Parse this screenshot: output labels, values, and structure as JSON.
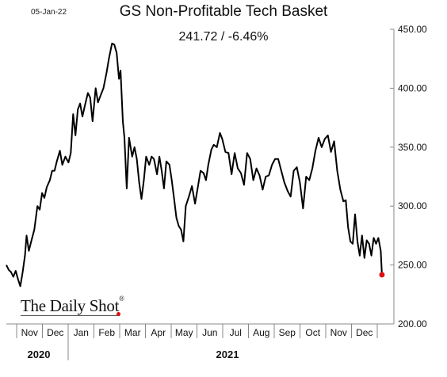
{
  "header": {
    "date": "05-Jan-22",
    "title": "GS Non-Profitable Tech Basket",
    "subtitle": "241.72  /  -6.46%"
  },
  "brand": {
    "name": "The Daily Shot",
    "mark": "®"
  },
  "chart_data": {
    "type": "line",
    "title": "GS Non-Profitable Tech Basket",
    "annotation": "241.72  /  -6.46%",
    "ylim": [
      200,
      450
    ],
    "y_ticks": [
      200,
      250,
      300,
      350,
      400,
      450
    ],
    "y_tick_labels": [
      "200.00",
      "250.00",
      "300.00",
      "350.00",
      "400.00",
      "450.00"
    ],
    "y_axis_side": "right",
    "grid": false,
    "x_month_labels": [
      "Nov",
      "Dec",
      "Jan",
      "Feb",
      "Mar",
      "Apr",
      "May",
      "Jun",
      "Jul",
      "Aug",
      "Sep",
      "Oct",
      "Nov",
      "Dec"
    ],
    "x_year_labels": [
      "2020",
      "2021"
    ],
    "last_point_color": "#e01010",
    "line_color": "#000000",
    "series": [
      {
        "values": [
          [
            0.0,
            250
          ],
          [
            0.15,
            246
          ],
          [
            0.3,
            244
          ],
          [
            0.45,
            240
          ],
          [
            0.6,
            245
          ],
          [
            0.75,
            238
          ],
          [
            0.9,
            232
          ],
          [
            1.05,
            244
          ],
          [
            1.2,
            258
          ],
          [
            1.3,
            275
          ],
          [
            1.45,
            262
          ],
          [
            1.6,
            270
          ],
          [
            1.8,
            280
          ],
          [
            2.0,
            300
          ],
          [
            2.15,
            297
          ],
          [
            2.3,
            311
          ],
          [
            2.45,
            307
          ],
          [
            2.6,
            316
          ],
          [
            2.8,
            322
          ],
          [
            2.95,
            330
          ],
          [
            3.1,
            330
          ],
          [
            3.25,
            338
          ],
          [
            3.45,
            347
          ],
          [
            3.6,
            335
          ],
          [
            3.8,
            342
          ],
          [
            4.0,
            337
          ],
          [
            4.15,
            345
          ],
          [
            4.3,
            378
          ],
          [
            4.45,
            360
          ],
          [
            4.6,
            382
          ],
          [
            4.75,
            387
          ],
          [
            4.9,
            376
          ],
          [
            5.05,
            385
          ],
          [
            5.25,
            396
          ],
          [
            5.4,
            392
          ],
          [
            5.55,
            372
          ],
          [
            5.75,
            400
          ],
          [
            5.9,
            388
          ],
          [
            6.1,
            395
          ],
          [
            6.25,
            400
          ],
          [
            6.45,
            413
          ],
          [
            6.6,
            425
          ],
          [
            6.8,
            438
          ],
          [
            6.95,
            437
          ],
          [
            7.1,
            430
          ],
          [
            7.25,
            408
          ],
          [
            7.35,
            415
          ],
          [
            7.5,
            372
          ],
          [
            7.6,
            358
          ],
          [
            7.75,
            315
          ],
          [
            7.9,
            358
          ],
          [
            8.1,
            342
          ],
          [
            8.25,
            350
          ],
          [
            8.4,
            340
          ],
          [
            8.55,
            320
          ],
          [
            8.7,
            306
          ],
          [
            8.85,
            322
          ],
          [
            9.0,
            342
          ],
          [
            9.2,
            335
          ],
          [
            9.35,
            342
          ],
          [
            9.5,
            340
          ],
          [
            9.7,
            327
          ],
          [
            9.85,
            342
          ],
          [
            10.0,
            330
          ],
          [
            10.15,
            315
          ],
          [
            10.3,
            338
          ],
          [
            10.5,
            335
          ],
          [
            10.65,
            322
          ],
          [
            10.8,
            306
          ],
          [
            10.95,
            290
          ],
          [
            11.1,
            283
          ],
          [
            11.25,
            280
          ],
          [
            11.4,
            270
          ],
          [
            11.55,
            300
          ],
          [
            11.75,
            308
          ],
          [
            11.95,
            317
          ],
          [
            12.15,
            302
          ],
          [
            12.35,
            318
          ],
          [
            12.5,
            330
          ],
          [
            12.7,
            328
          ],
          [
            12.85,
            322
          ],
          [
            13.0,
            335
          ],
          [
            13.2,
            348
          ],
          [
            13.35,
            352
          ],
          [
            13.55,
            350
          ],
          [
            13.75,
            362
          ],
          [
            13.9,
            357
          ],
          [
            14.1,
            346
          ],
          [
            14.3,
            345
          ],
          [
            14.5,
            327
          ],
          [
            14.7,
            345
          ],
          [
            14.9,
            332
          ],
          [
            15.1,
            328
          ],
          [
            15.3,
            318
          ],
          [
            15.5,
            345
          ],
          [
            15.7,
            340
          ],
          [
            15.9,
            322
          ],
          [
            16.1,
            332
          ],
          [
            16.3,
            326
          ],
          [
            16.5,
            314
          ],
          [
            16.7,
            325
          ],
          [
            16.9,
            326
          ],
          [
            17.1,
            335
          ],
          [
            17.3,
            340
          ],
          [
            17.5,
            340
          ],
          [
            17.7,
            330
          ],
          [
            17.9,
            320
          ],
          [
            18.1,
            313
          ],
          [
            18.3,
            308
          ],
          [
            18.5,
            330
          ],
          [
            18.7,
            333
          ],
          [
            18.9,
            320
          ],
          [
            19.1,
            298
          ],
          [
            19.3,
            325
          ],
          [
            19.5,
            322
          ],
          [
            19.7,
            332
          ],
          [
            19.9,
            347
          ],
          [
            20.1,
            358
          ],
          [
            20.3,
            350
          ],
          [
            20.5,
            357
          ],
          [
            20.7,
            360
          ],
          [
            20.9,
            346
          ],
          [
            21.1,
            355
          ],
          [
            21.3,
            330
          ],
          [
            21.5,
            314
          ],
          [
            21.7,
            304
          ],
          [
            21.85,
            305
          ],
          [
            22.0,
            282
          ],
          [
            22.15,
            270
          ],
          [
            22.3,
            268
          ],
          [
            22.45,
            293
          ],
          [
            22.6,
            270
          ],
          [
            22.75,
            258
          ],
          [
            22.9,
            275
          ],
          [
            23.05,
            256
          ],
          [
            23.2,
            271
          ],
          [
            23.35,
            268
          ],
          [
            23.5,
            258
          ],
          [
            23.65,
            273
          ],
          [
            23.8,
            268
          ],
          [
            23.95,
            273
          ],
          [
            24.1,
            262
          ],
          [
            24.18,
            241.72
          ]
        ]
      }
    ]
  }
}
